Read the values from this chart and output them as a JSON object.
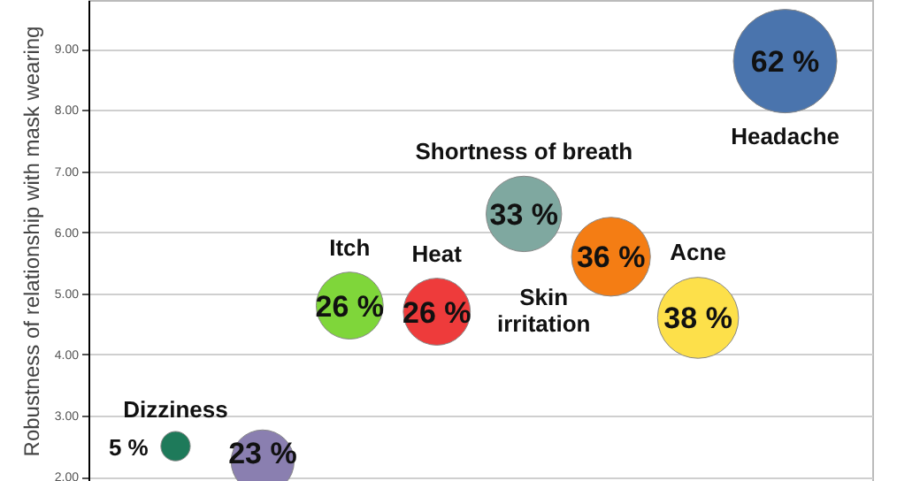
{
  "chart_data": {
    "type": "bubble",
    "ylabel": "Robustness of relationship with mask wearing",
    "categories": [
      null,
      null,
      null,
      null,
      null,
      null,
      null,
      null
    ],
    "ylim": [
      1.93,
      9.8
    ],
    "yticks": [
      {
        "value": 2,
        "label": "2.00"
      },
      {
        "value": 3,
        "label": "3.00"
      },
      {
        "value": 4,
        "label": "4.00"
      },
      {
        "value": 5,
        "label": "5.00"
      },
      {
        "value": 6,
        "label": "6.00"
      },
      {
        "value": 7,
        "label": "7.00"
      },
      {
        "value": 8,
        "label": "8.00"
      },
      {
        "value": 9,
        "label": "9.00"
      }
    ],
    "grid": "y",
    "tick_labels": "y",
    "series": [
      {
        "name": "Dizziness",
        "color": "#1e7a5a",
        "values": [
          2.5,
          null,
          null,
          null,
          null,
          null,
          null,
          null
        ],
        "sizes": [
          5,
          null,
          null,
          null,
          null,
          null,
          null,
          null
        ],
        "value_labels": [
          "5 %",
          null,
          null,
          null,
          null,
          null,
          null,
          null
        ]
      },
      {
        "color": "#8a7fb0",
        "values": [
          null,
          2.25,
          null,
          null,
          null,
          null,
          null,
          null
        ],
        "sizes": [
          null,
          23,
          null,
          null,
          null,
          null,
          null,
          null
        ],
        "value_labels": [
          null,
          "23 %",
          null,
          null,
          null,
          null,
          null,
          null
        ]
      },
      {
        "name": "Itch",
        "color": "#7fd63a",
        "values": [
          null,
          null,
          4.8,
          null,
          null,
          null,
          null,
          null
        ],
        "sizes": [
          null,
          null,
          26,
          null,
          null,
          null,
          null,
          null
        ],
        "value_labels": [
          null,
          null,
          "26 %",
          null,
          null,
          null,
          null,
          null
        ]
      },
      {
        "name": "Heat",
        "color": "#ee3b3b",
        "values": [
          null,
          null,
          null,
          4.7,
          null,
          null,
          null,
          null
        ],
        "sizes": [
          null,
          null,
          null,
          26,
          null,
          null,
          null,
          null
        ],
        "value_labels": [
          null,
          null,
          null,
          "26 %",
          null,
          null,
          null,
          null
        ]
      },
      {
        "name": "Shortness of breath",
        "color": "#7fa8a0",
        "values": [
          null,
          null,
          null,
          null,
          6.3,
          null,
          null,
          null
        ],
        "sizes": [
          null,
          null,
          null,
          null,
          33,
          null,
          null,
          null
        ],
        "value_labels": [
          null,
          null,
          null,
          null,
          "33 %",
          null,
          null,
          null
        ]
      },
      {
        "name": "Skin irritation",
        "color": "#f47d14",
        "values": [
          null,
          null,
          null,
          null,
          null,
          5.6,
          null,
          null
        ],
        "sizes": [
          null,
          null,
          null,
          null,
          null,
          36,
          null,
          null
        ],
        "value_labels": [
          null,
          null,
          null,
          null,
          null,
          "36 %",
          null,
          null
        ]
      },
      {
        "name": "Acne",
        "color": "#fde04a",
        "values": [
          null,
          null,
          null,
          null,
          null,
          null,
          4.6,
          null
        ],
        "sizes": [
          null,
          null,
          null,
          null,
          null,
          null,
          38,
          null
        ],
        "value_labels": [
          null,
          null,
          null,
          null,
          null,
          null,
          "38 %",
          null
        ]
      },
      {
        "name": "Headache",
        "color": "#4a74ad",
        "values": [
          null,
          null,
          null,
          null,
          null,
          null,
          null,
          8.8
        ],
        "sizes": [
          null,
          null,
          null,
          null,
          null,
          null,
          null,
          62
        ],
        "value_labels": [
          null,
          null,
          null,
          null,
          null,
          null,
          null,
          "62 %"
        ]
      }
    ]
  }
}
